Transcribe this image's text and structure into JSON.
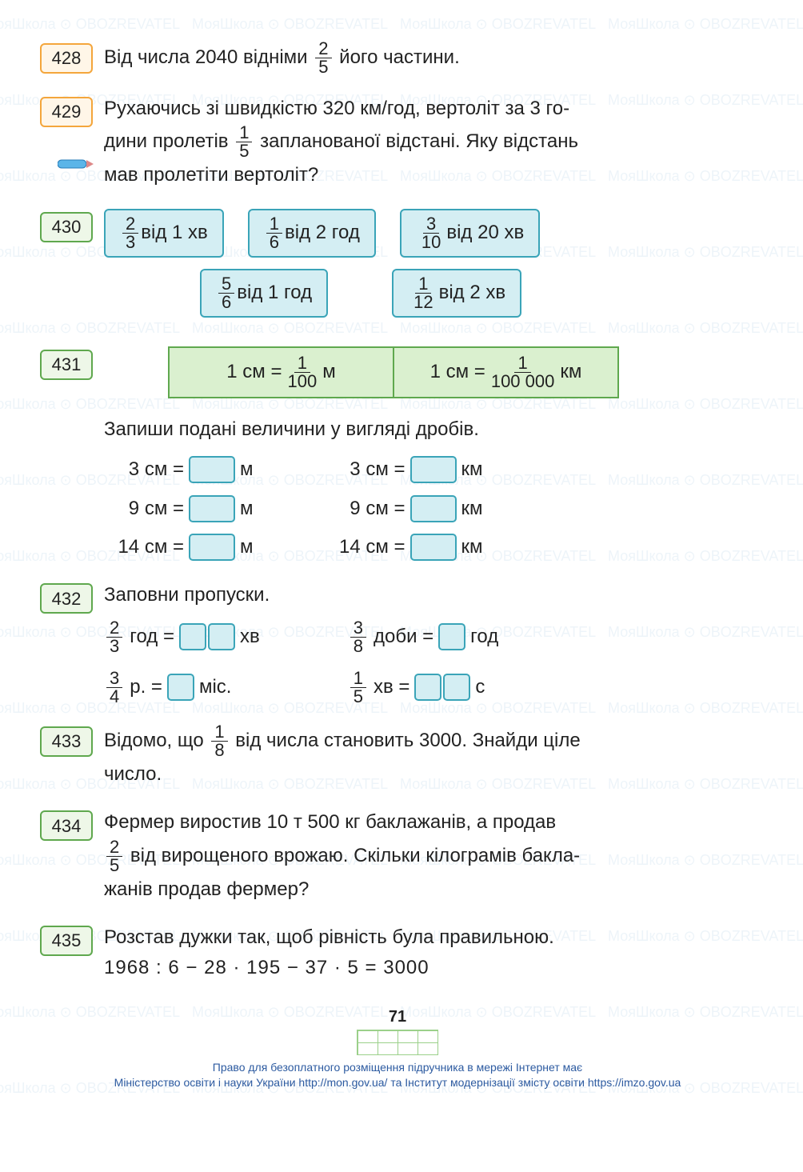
{
  "watermarks": [
    "МояШкола",
    "OBOZREVATEL"
  ],
  "tasks": {
    "t428": {
      "num": "428",
      "text_a": "Від числа 2040 відніми ",
      "frac": {
        "n": "2",
        "d": "5"
      },
      "text_b": " його частини."
    },
    "t429": {
      "num": "429",
      "text_a": "Рухаючись зі швидкістю 320 км/год, вертоліт за 3 го-",
      "text_b": "дини пролетів ",
      "frac": {
        "n": "1",
        "d": "5"
      },
      "text_c": " запланованої відстані. Яку відстань",
      "text_d": "мав пролетіти вертоліт?"
    },
    "t430": {
      "num": "430",
      "row1": [
        {
          "frac": {
            "n": "2",
            "d": "3"
          },
          "label": " від 1 хв"
        },
        {
          "frac": {
            "n": "1",
            "d": "6"
          },
          "label": " від 2 год"
        },
        {
          "frac": {
            "n": "3",
            "d": "10"
          },
          "label": " від 20 хв"
        }
      ],
      "row2": [
        {
          "frac": {
            "n": "5",
            "d": "6"
          },
          "label": " від 1 год"
        },
        {
          "frac": {
            "n": "1",
            "d": "12"
          },
          "label": " від 2 хв"
        }
      ]
    },
    "t431": {
      "num": "431",
      "cell1_a": "1 см = ",
      "cell1_frac": {
        "n": "1",
        "d": "100"
      },
      "cell1_b": " м",
      "cell2_a": "1 см = ",
      "cell2_frac": {
        "n": "1",
        "d": "100 000"
      },
      "cell2_b": " км",
      "instruction": "Запиши подані величини у вигляді дробів.",
      "col1": [
        {
          "a": "3 см =",
          "unit": "м"
        },
        {
          "a": "9 см =",
          "unit": "м"
        },
        {
          "a": "14 см =",
          "unit": "м"
        }
      ],
      "col2": [
        {
          "a": "3 см =",
          "unit": "км"
        },
        {
          "a": "9 см =",
          "unit": "км"
        },
        {
          "a": "14 см =",
          "unit": "км"
        }
      ]
    },
    "t432": {
      "num": "432",
      "title": "Заповни пропуски.",
      "col1": [
        {
          "frac": {
            "n": "2",
            "d": "3"
          },
          "a": " год =",
          "unit": "хв",
          "double": true
        },
        {
          "frac": {
            "n": "3",
            "d": "4"
          },
          "a": " р. =",
          "unit": "міс.",
          "double": false
        }
      ],
      "col2": [
        {
          "frac": {
            "n": "3",
            "d": "8"
          },
          "a": " доби =",
          "unit": "год",
          "double": false
        },
        {
          "frac": {
            "n": "1",
            "d": "5"
          },
          "a": " хв =",
          "unit": "с",
          "double": true
        }
      ]
    },
    "t433": {
      "num": "433",
      "text_a": "Відомо, що ",
      "frac": {
        "n": "1",
        "d": "8"
      },
      "text_b": " від числа становить 3000. Знайди ціле",
      "text_c": "число."
    },
    "t434": {
      "num": "434",
      "text_a": "Фермер виростив 10 т 500 кг баклажанів, а продав",
      "frac": {
        "n": "2",
        "d": "5"
      },
      "text_b": " від вирощеного врожаю. Скільки кілограмів бакла-",
      "text_c": "жанів продав фермер?"
    },
    "t435": {
      "num": "435",
      "text_a": "Розстав дужки так, щоб рівність була правильною.",
      "expr": "1968 : 6 − 28 · 195 − 37 · 5 = 3000"
    }
  },
  "page_number": "71",
  "footer": {
    "line1": "Право для безоплатного розміщення підручника в мережі Інтернет має",
    "line2_a": "Міністерство освіти і науки України ",
    "url1": "http://mon.gov.ua/",
    "line2_b": " та Інститут модернізації змісту освіти ",
    "url2": "https://imzo.gov.ua"
  },
  "colors": {
    "orange_border": "#f4a63c",
    "orange_bg": "#fff6e8",
    "green_border": "#5fa84e",
    "green_bg": "#daf0cf",
    "cyan_border": "#3aa4b8",
    "cyan_bg": "#d4eef3",
    "link": "#2c5aa0"
  }
}
